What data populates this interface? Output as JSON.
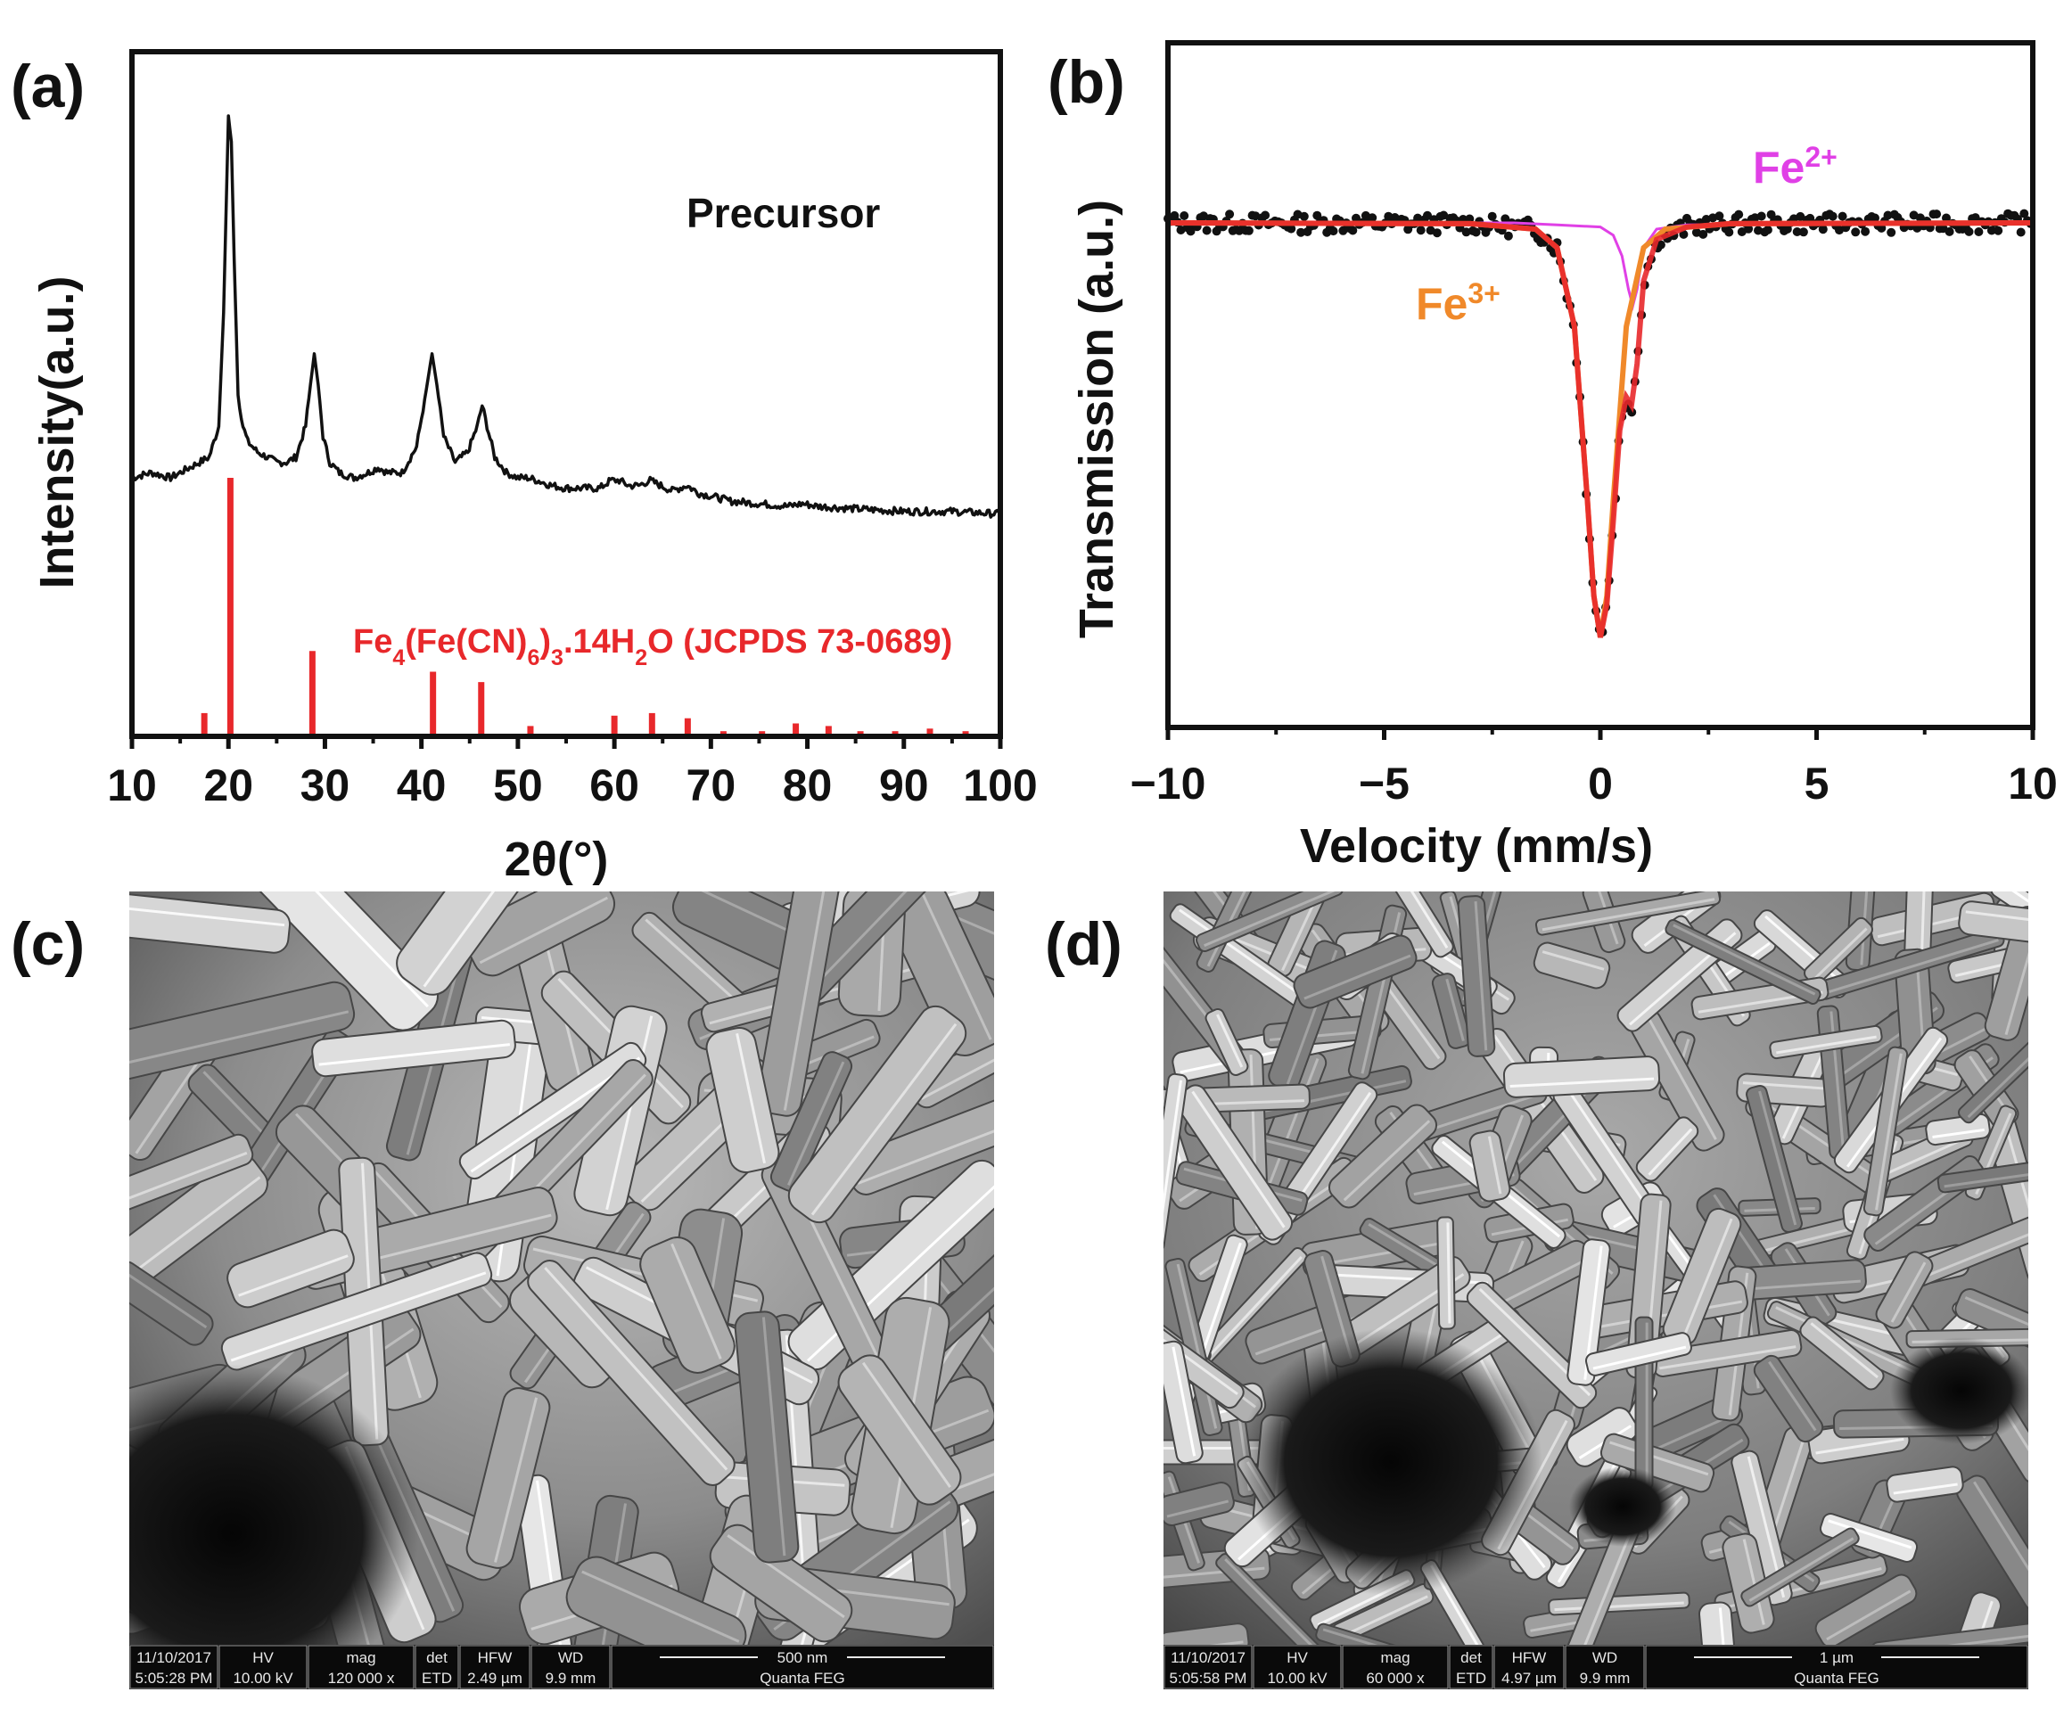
{
  "panels": {
    "a": {
      "label": "(a)",
      "legend_text": "Precursor",
      "ref_text": {
        "parts": [
          "Fe",
          "4",
          "(Fe(CN)",
          "6",
          ")",
          "3",
          ".14H",
          "2",
          "O (JCPDS 73-0689)"
        ]
      },
      "ylabel": "Intensity(a.u.)",
      "xlabel": "2θ(°)"
    },
    "b": {
      "label": "(b)",
      "ylabel": "Transmission (a.u.)",
      "xlabel": "Velocity (mm/s)",
      "fe2_base": "Fe",
      "fe2_sup": "2+",
      "fe3_base": "Fe",
      "fe3_sup": "3+"
    },
    "c": {
      "label": "(c)",
      "sem_info": {
        "date": "11/10/2017",
        "time": "5:05:28 PM",
        "hv_label": "HV",
        "hv": "10.00 kV",
        "mag_label": "mag",
        "mag": "120 000 x",
        "det_label": "det",
        "det": "ETD",
        "hfw_label": "HFW",
        "hfw": "2.49 µm",
        "wd_label": "WD",
        "wd": "9.9 mm",
        "scale": "500 nm",
        "instrument": "Quanta FEG"
      }
    },
    "d": {
      "label": "(d)",
      "sem_info": {
        "date": "11/10/2017",
        "time": "5:05:58 PM",
        "hv_label": "HV",
        "hv": "10.00 kV",
        "mag_label": "mag",
        "mag": "60 000 x",
        "det_label": "det",
        "det": "ETD",
        "hfw_label": "HFW",
        "hfw": "4.97 µm",
        "wd_label": "WD",
        "wd": "9.9 mm",
        "scale": "1 µm",
        "instrument": "Quanta FEG"
      }
    }
  },
  "colors": {
    "axis": "#111111",
    "xrd_pattern": "#111111",
    "reference_bars": "#e8282b",
    "fe2": "#e040e6",
    "fe3": "#f0892a",
    "fit_total": "#e8282b",
    "data_points": "#111111"
  },
  "chart_data": [
    {
      "panel": "a",
      "type": "line",
      "xlabel": "2θ(°)",
      "ylabel": "Intensity(a.u.)",
      "xlim": [
        10,
        100
      ],
      "xticks": [
        10,
        20,
        30,
        40,
        50,
        60,
        70,
        80,
        90,
        100
      ],
      "yticks_shown": false,
      "series": [
        {
          "name": "Precursor",
          "style": "line",
          "color": "#111111",
          "x": [
            10,
            12,
            14,
            16,
            17,
            18,
            19,
            19.5,
            20.0,
            20.3,
            20.6,
            21,
            21.5,
            22,
            23,
            24,
            25,
            26,
            27,
            28,
            28.5,
            28.9,
            29.3,
            29.8,
            30.5,
            31.5,
            33,
            34.5,
            35.5,
            36.5,
            38,
            39.5,
            40.5,
            41.1,
            41.6,
            42.3,
            43.5,
            44.8,
            45.8,
            46.3,
            46.8,
            47.6,
            48.8,
            50,
            51,
            52,
            53.5,
            55,
            57,
            58.5,
            59.6,
            60.5,
            61.5,
            62.5,
            63.7,
            64.8,
            66,
            67.5,
            68.8,
            70,
            72,
            75,
            78,
            79.5,
            81,
            85,
            90,
            95,
            100
          ],
          "y": [
            30,
            31,
            30,
            32,
            33,
            34,
            40,
            62,
            100,
            95,
            72,
            46,
            40,
            37,
            35,
            34,
            33,
            33,
            34,
            40,
            48,
            54,
            48,
            38,
            33,
            31,
            30,
            31,
            32,
            31,
            31,
            36,
            47,
            54,
            48,
            38,
            33,
            35,
            40,
            44,
            40,
            34,
            31,
            30,
            30,
            29.5,
            28.5,
            28,
            28,
            28,
            29.5,
            29.5,
            28.5,
            28.5,
            29.5,
            28.5,
            27.5,
            28.5,
            27,
            26.5,
            25.5,
            25,
            24.5,
            25,
            24.5,
            24,
            23.5,
            23.5,
            23
          ]
        },
        {
          "name": "Fe4(Fe(CN)6)3.14H2O (JCPDS 73-0689)",
          "style": "stick",
          "color": "#e8282b",
          "x": [
            17.5,
            20.2,
            28.7,
            33.8,
            35.3,
            41.2,
            46.2,
            51.3,
            54.8,
            60.0,
            63.9,
            67.6,
            71.3,
            75.3,
            78.8,
            82.2,
            85.5,
            89.1,
            92.7,
            96.4,
            99.8
          ],
          "y": [
            9,
            100,
            33,
            1,
            1,
            25,
            21,
            4,
            1,
            8,
            9,
            7,
            2,
            2,
            5,
            4,
            2,
            2,
            3,
            2,
            1
          ]
        }
      ]
    },
    {
      "panel": "b",
      "type": "scatter",
      "xlabel": "Velocity (mm/s)",
      "ylabel": "Transmission (a.u.)",
      "xlim": [
        -10,
        10
      ],
      "xticks": [
        -10,
        -5,
        0,
        5,
        10
      ],
      "yticks_shown": false,
      "series": [
        {
          "name": "data",
          "style": "points",
          "color": "#111111",
          "x": [
            -9.5,
            -8,
            -6,
            -4,
            -3,
            -2,
            -1.5,
            -1.0,
            -0.6,
            -0.4,
            -0.25,
            -0.12,
            0.0,
            0.12,
            0.25,
            0.4,
            0.55,
            0.7,
            0.85,
            1.0,
            1.2,
            1.5,
            2,
            3,
            4,
            6,
            8,
            9.5
          ],
          "y": [
            1.0,
            1.0,
            1.0,
            1.0,
            1.0,
            0.996,
            0.985,
            0.94,
            0.75,
            0.45,
            0.13,
            0.02,
            0.0,
            0.06,
            0.24,
            0.49,
            0.58,
            0.57,
            0.7,
            0.89,
            0.97,
            0.99,
            1.0,
            1.0,
            1.0,
            1.0,
            1.0,
            1.0
          ]
        },
        {
          "name": "Fe2+",
          "style": "line",
          "color": "#e040e6",
          "x": [
            -10,
            -2,
            -1,
            0,
            0.3,
            0.5,
            0.65,
            0.75,
            0.85,
            1.0,
            1.3,
            2,
            5,
            10
          ],
          "y": [
            1.0,
            1.0,
            0.995,
            0.99,
            0.97,
            0.92,
            0.84,
            0.8,
            0.84,
            0.94,
            0.985,
            0.995,
            1.0,
            1.0
          ]
        },
        {
          "name": "Fe3+",
          "style": "line",
          "color": "#f0892a",
          "x": [
            -10,
            -3,
            -1.5,
            -1.0,
            -0.6,
            -0.3,
            -0.15,
            0.0,
            0.15,
            0.3,
            0.6,
            1.0,
            1.5,
            3,
            10
          ],
          "y": [
            1.0,
            0.998,
            0.985,
            0.94,
            0.75,
            0.33,
            0.1,
            0.0,
            0.1,
            0.33,
            0.75,
            0.94,
            0.985,
            0.998,
            1.0
          ]
        },
        {
          "name": "fit",
          "style": "line",
          "color": "#e8282b",
          "x": [
            -10,
            -3,
            -1.5,
            -1.0,
            -0.6,
            -0.3,
            -0.15,
            0.0,
            0.15,
            0.3,
            0.45,
            0.6,
            0.72,
            0.85,
            1.0,
            1.3,
            2,
            3,
            10
          ],
          "y": [
            1.0,
            0.998,
            0.985,
            0.94,
            0.75,
            0.33,
            0.1,
            0.0,
            0.08,
            0.28,
            0.5,
            0.58,
            0.56,
            0.66,
            0.86,
            0.96,
            0.99,
            0.998,
            1.0
          ]
        }
      ]
    }
  ]
}
